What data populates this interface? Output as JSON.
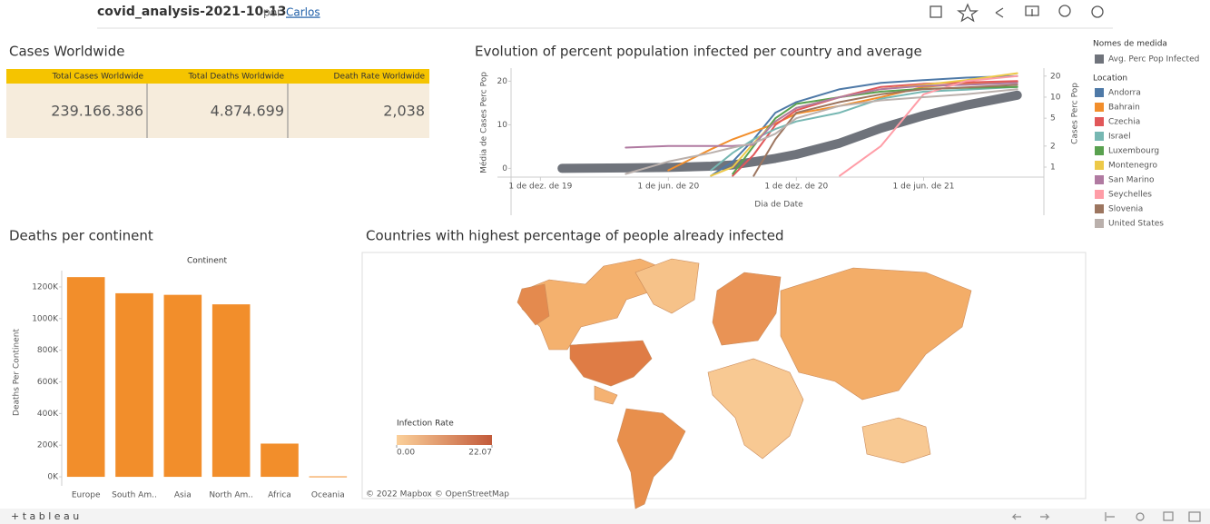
{
  "header": {
    "title": "covid_analysis-2021-10-13",
    "by": "por",
    "author": "Carlos"
  },
  "kpi": {
    "title": "Cases Worldwide",
    "columns": [
      "Total Cases Worldwide",
      "Total Deaths Worldwide",
      "Death Rate Worldwide"
    ],
    "values": [
      "239.166.386",
      "4.874.699",
      "2,038"
    ]
  },
  "chart_data": [
    {
      "type": "line",
      "title": "Evolution of percent population infected per country and average",
      "ylabel": "Média de Cases Perc Pop",
      "y2label": "Cases Perc Pop",
      "xlabel": "Dia de Date",
      "x": [
        "2020-01-01",
        "2020-04-01",
        "2020-06-01",
        "2020-08-01",
        "2020-09-01",
        "2020-10-01",
        "2020-11-01",
        "2020-12-01",
        "2021-02-01",
        "2021-04-01",
        "2021-06-01",
        "2021-08-01",
        "2021-10-13"
      ],
      "xlim": [
        "2019-10-20",
        "2021-11-20"
      ],
      "xticks": [
        {
          "value": "2019-12-01",
          "label": "1 de dez. de 19"
        },
        {
          "value": "2020-06-01",
          "label": "1 de jun. de 20"
        },
        {
          "value": "2020-12-01",
          "label": "1 de dez. de 20"
        },
        {
          "value": "2021-06-01",
          "label": "1 de jun. de 21"
        }
      ],
      "ylim": [
        -2,
        23
      ],
      "yticks": [
        0,
        10,
        20
      ],
      "y2lim": [
        0.72,
        26
      ],
      "y2ticks": [
        1,
        2,
        5,
        10,
        20
      ],
      "y2log": true,
      "measure_legend_title": "Nomes de medida",
      "location_legend_title": "Location",
      "series": [
        {
          "name": "Avg. Perc Pop Infected",
          "color": "#6f737b",
          "axis": "y",
          "values": [
            0.0,
            0.1,
            0.2,
            0.5,
            0.8,
            1.5,
            2.3,
            3.2,
            5.8,
            9.2,
            12.1,
            14.5,
            16.8
          ]
        },
        {
          "name": "Andorra",
          "color": "#4e79a7",
          "axis": "y2",
          "values": [
            null,
            null,
            null,
            0.75,
            1.2,
            2.5,
            6,
            8.5,
            13,
            16,
            17.5,
            19,
            20
          ]
        },
        {
          "name": "Bahrain",
          "color": "#f28e2b",
          "axis": "y2",
          "values": [
            null,
            null,
            0.9,
            1.8,
            2.5,
            3.2,
            4.2,
            5.8,
            7.5,
            10,
            14,
            15.5,
            16.7
          ]
        },
        {
          "name": "Czechia",
          "color": "#e15759",
          "axis": "y2",
          "values": [
            null,
            null,
            null,
            null,
            0.75,
            1.5,
            4,
            6.5,
            10,
            14,
            15.5,
            16.2,
            17
          ]
        },
        {
          "name": "Israel",
          "color": "#76b7b2",
          "axis": "y2",
          "values": [
            null,
            null,
            null,
            0.9,
            1.6,
            2.5,
            3.5,
            4.5,
            6,
            9.5,
            12,
            12.8,
            14
          ]
        },
        {
          "name": "Luxembourg",
          "color": "#59a14f",
          "axis": "y2",
          "values": [
            null,
            null,
            null,
            null,
            0.8,
            2,
            5,
            8,
            10,
            12,
            13.2,
            13.6,
            14
          ]
        },
        {
          "name": "Montenegro",
          "color": "#edc948",
          "axis": "y2",
          "values": [
            null,
            null,
            null,
            0.75,
            1,
            2.2,
            4.5,
            7,
            10,
            13,
            15,
            17.5,
            22
          ]
        },
        {
          "name": "San Marino",
          "color": "#b07aa1",
          "axis": "y2",
          "values": [
            null,
            1.9,
            2.0,
            2.0,
            2.0,
            2.1,
            4.5,
            7,
            10,
            13,
            14.5,
            15,
            16
          ]
        },
        {
          "name": "Seychelles",
          "color": "#ff9da7",
          "axis": "y2",
          "values": [
            null,
            null,
            null,
            null,
            null,
            null,
            null,
            null,
            0.75,
            2,
            11,
            17,
            20
          ]
        },
        {
          "name": "Slovenia",
          "color": "#9c755f",
          "axis": "y2",
          "values": [
            null,
            null,
            null,
            null,
            null,
            0.75,
            2.5,
            6,
            8.5,
            11,
            13,
            13.8,
            15
          ]
        },
        {
          "name": "United States",
          "color": "#bab0ac",
          "axis": "y2",
          "values": [
            null,
            0.8,
            1.2,
            1.6,
            1.9,
            2.2,
            3,
            5,
            7.5,
            9,
            10,
            11,
            13
          ]
        }
      ]
    },
    {
      "type": "bar",
      "title": "Deaths per continent",
      "x_header": "Continent",
      "ylabel": "Deaths Per Continent",
      "categories": [
        "Europe",
        "South Am..",
        "Asia",
        "North Am..",
        "Africa",
        "Oceania"
      ],
      "values": [
        1262000,
        1160000,
        1150000,
        1090000,
        210000,
        3000
      ],
      "color": "#f28e2b",
      "ylim": [
        -57000,
        1303000
      ],
      "yticks": [
        {
          "value": 0,
          "label": "0K"
        },
        {
          "value": 200000,
          "label": "200K"
        },
        {
          "value": 400000,
          "label": "400K"
        },
        {
          "value": 600000,
          "label": "600K"
        },
        {
          "value": 800000,
          "label": "800K"
        },
        {
          "value": 1000000,
          "label": "1000K"
        },
        {
          "value": 1200000,
          "label": "1200K"
        }
      ]
    },
    {
      "type": "map",
      "title": "Countries with highest percentage of people already infected",
      "legend_title": "Infection Rate",
      "color_range": [
        "#fbd09a",
        "#c25a3a"
      ],
      "legend_ticks": [
        {
          "value": 0,
          "label": "0.00"
        },
        {
          "value": 22.07,
          "label": "22.07"
        }
      ],
      "attribution": "© 2022 Mapbox © OpenStreetMap"
    }
  ],
  "footer": {
    "logo": "+ t a b l e a u"
  }
}
